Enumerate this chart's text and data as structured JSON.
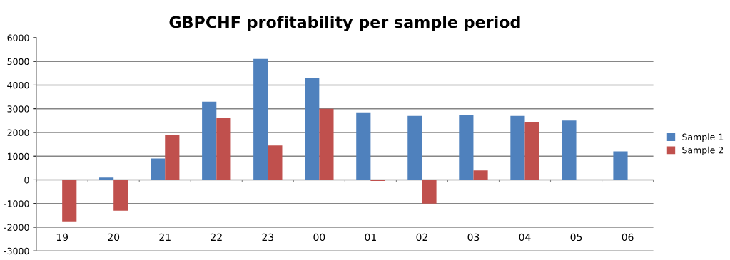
{
  "chart_data": {
    "type": "bar",
    "title": "GBPCHF profitability per sample period",
    "categories": [
      "19",
      "20",
      "21",
      "22",
      "23",
      "00",
      "01",
      "02",
      "03",
      "04",
      "05",
      "06"
    ],
    "series": [
      {
        "name": "Sample 1",
        "color": "#4f81bd",
        "values": [
          null,
          100,
          900,
          3300,
          5100,
          4300,
          2850,
          2700,
          2750,
          2700,
          2500,
          1200
        ]
      },
      {
        "name": "Sample 2",
        "color": "#c0504d",
        "values": [
          -1750,
          -1300,
          1900,
          2600,
          1450,
          3000,
          -50,
          -1000,
          400,
          2450,
          null,
          null
        ]
      }
    ],
    "ylim": [
      -3000,
      6000
    ],
    "yticks": [
      -3000,
      -2000,
      -1000,
      0,
      1000,
      2000,
      3000,
      4000,
      5000,
      6000
    ],
    "grid": "y",
    "legend": "right"
  }
}
